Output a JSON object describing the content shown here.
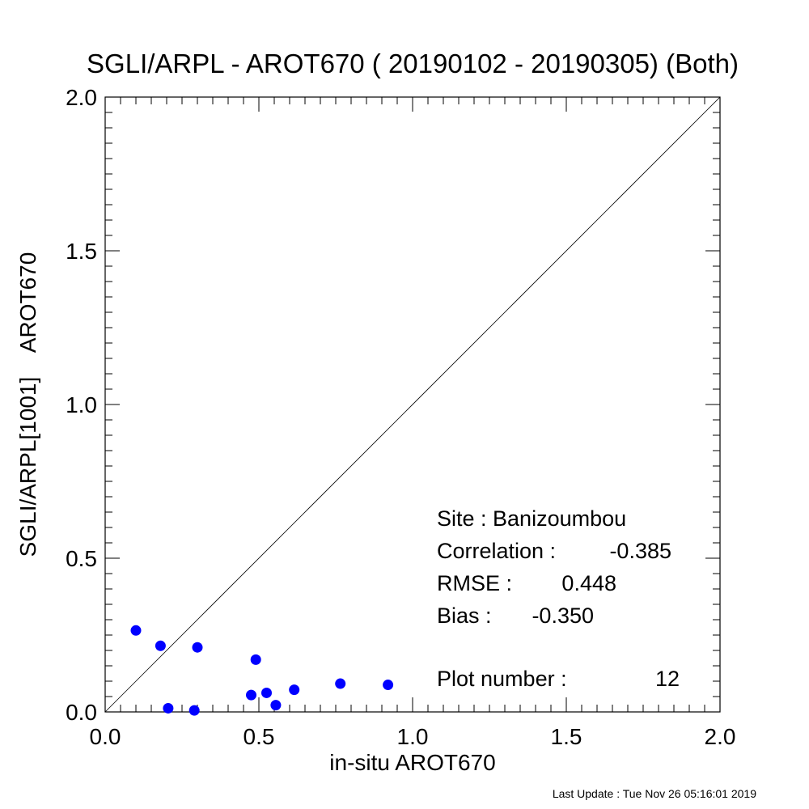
{
  "chart_data": {
    "type": "scatter",
    "title": "SGLI/ARPL - AROT670 ( 20190102 - 20190305) (Both)",
    "xlabel": "in-situ AROT670",
    "ylabel": "SGLI/ARPL[1001]    AROT670",
    "xlim": [
      0.0,
      2.0
    ],
    "ylim": [
      0.0,
      2.0
    ],
    "x_ticks": [
      "0.0",
      "0.5",
      "1.0",
      "1.5",
      "2.0"
    ],
    "y_ticks": [
      "0.0",
      "0.5",
      "1.0",
      "1.5",
      "2.0"
    ],
    "grid": false,
    "reference_line": "1:1",
    "point_color": "#0000ff",
    "points": [
      {
        "x": 0.1,
        "y": 0.265
      },
      {
        "x": 0.18,
        "y": 0.215
      },
      {
        "x": 0.3,
        "y": 0.21
      },
      {
        "x": 0.205,
        "y": 0.012
      },
      {
        "x": 0.29,
        "y": 0.005
      },
      {
        "x": 0.49,
        "y": 0.17
      },
      {
        "x": 0.475,
        "y": 0.055
      },
      {
        "x": 0.525,
        "y": 0.062
      },
      {
        "x": 0.555,
        "y": 0.022
      },
      {
        "x": 0.615,
        "y": 0.072
      },
      {
        "x": 0.765,
        "y": 0.092
      },
      {
        "x": 0.92,
        "y": 0.088
      }
    ],
    "stats": {
      "site": "Site : Banizoumbou",
      "correlation_label": "Correlation :",
      "correlation": "-0.385",
      "rmse_label": "RMSE :",
      "rmse": "0.448",
      "bias_label": "Bias :",
      "bias": "-0.350",
      "plot_number_label": "Plot number :",
      "plot_number": "12"
    }
  },
  "footer": {
    "last_update": "Last Update : Tue Nov 26 05:16:01 2019"
  }
}
